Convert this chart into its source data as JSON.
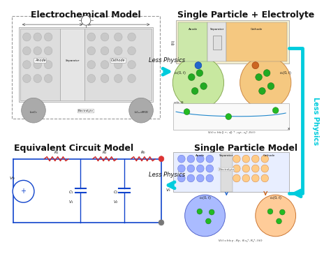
{
  "bg_color": "#ffffff",
  "title_electrochemical": "Electrochemical Model",
  "title_spe": "Single Particle + Electrolyte",
  "title_spm": "Single Particle Model",
  "title_ecm": "Equivalent Circuit Model",
  "arrow_color": "#00ccdd",
  "title_fontsize": 9,
  "text_color": "#111111",
  "lp_text": "Less Physics",
  "lp_fontsize": 6,
  "right_lp_color": "#00bbdd"
}
